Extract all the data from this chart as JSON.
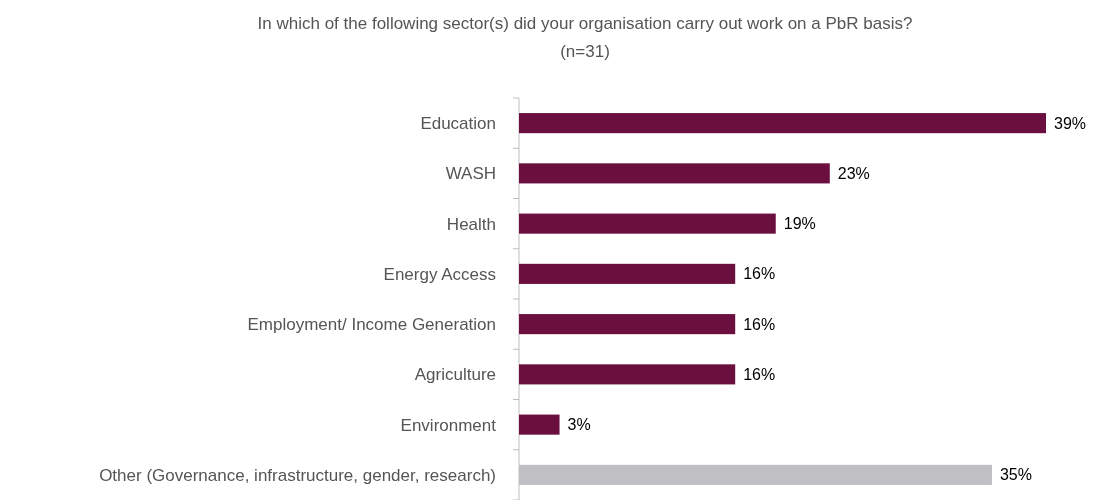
{
  "chart_data": {
    "type": "bar",
    "orientation": "horizontal",
    "title": "In which of the following sector(s) did your organisation carry out work on a PbR basis?",
    "subtitle": "(n=31)",
    "categories": [
      "Education",
      "WASH",
      "Health",
      "Energy Access",
      "Employment/ Income Generation",
      "Agriculture",
      "Environment",
      "Other (Governance, infrastructure, gender, research)"
    ],
    "values": [
      39,
      23,
      19,
      16,
      16,
      16,
      3,
      35
    ],
    "colors": [
      "#6b0f3f",
      "#6b0f3f",
      "#6b0f3f",
      "#6b0f3f",
      "#6b0f3f",
      "#6b0f3f",
      "#6b0f3f",
      "#bfbfc4"
    ],
    "value_labels": [
      "39%",
      "23%",
      "19%",
      "16%",
      "16%",
      "16%",
      "3%",
      "35%"
    ]
  }
}
